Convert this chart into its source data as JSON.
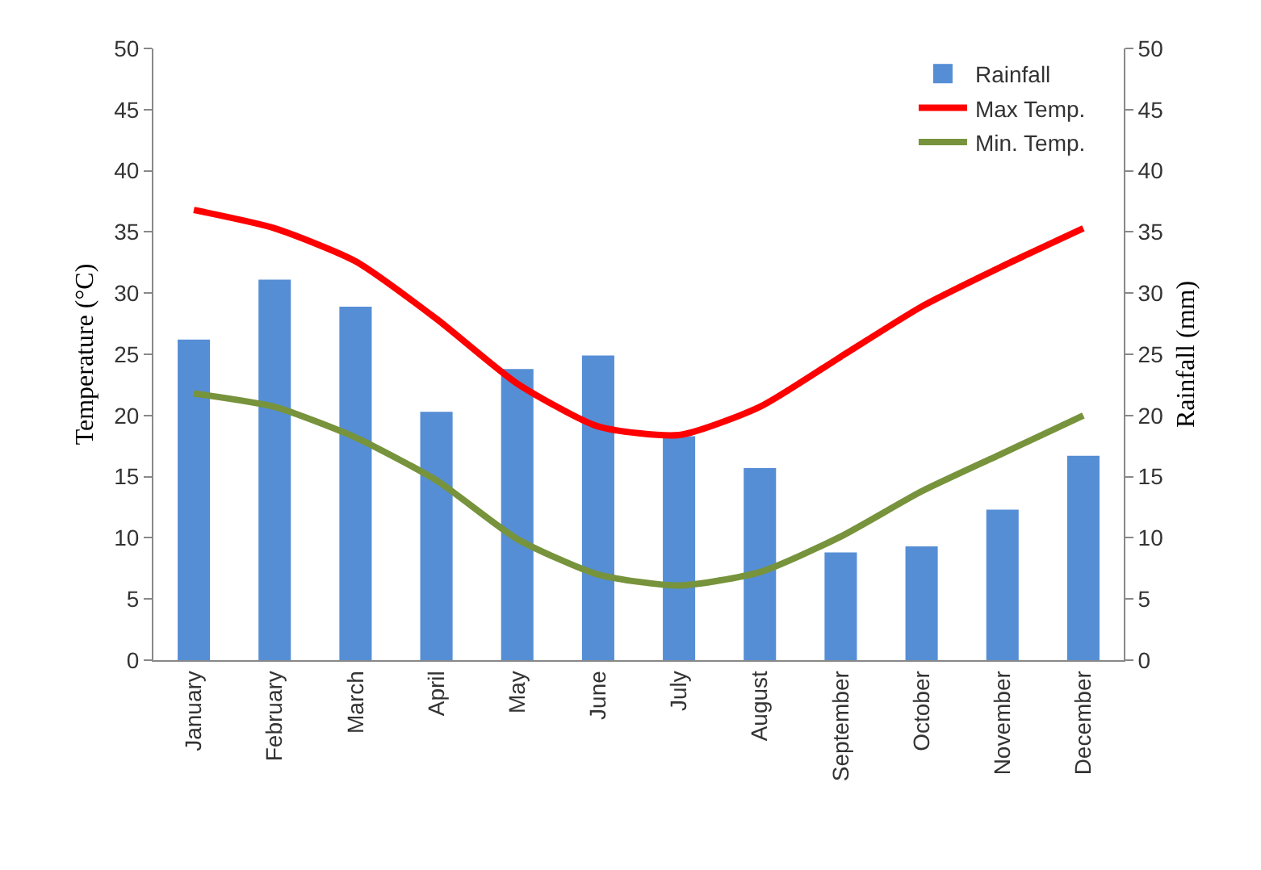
{
  "chart_data": {
    "type": "bar",
    "ylabel": "Temperature (°C)",
    "y2label": "Rainfall (mm)",
    "categories": [
      "January",
      "February",
      "March",
      "April",
      "May",
      "June",
      "July",
      "August",
      "September",
      "October",
      "November",
      "December"
    ],
    "series": [
      {
        "name": "Rainfall",
        "axis": "y2",
        "color": "#558ed5",
        "values": [
          26.2,
          31.1,
          28.9,
          20.3,
          23.8,
          24.9,
          18.3,
          15.7,
          8.8,
          9.3,
          12.3,
          16.7
        ]
      },
      {
        "name": "Max Temp.",
        "type": "line",
        "color": "#ff0000",
        "values": [
          36.8,
          35.3,
          32.6,
          27.9,
          22.6,
          19.1,
          18.4,
          20.7,
          24.8,
          28.9,
          32.2,
          35.3
        ]
      },
      {
        "name": "Min. Temp.",
        "type": "line",
        "color": "#77933c",
        "values": [
          21.8,
          20.7,
          18.2,
          14.7,
          9.9,
          7.0,
          6.1,
          7.2,
          10.1,
          13.8,
          16.9,
          20.0
        ]
      }
    ],
    "ylim": [
      0,
      50
    ],
    "yticks": [
      0,
      5,
      10,
      15,
      20,
      25,
      30,
      35,
      40,
      45,
      50
    ],
    "y2lim": [
      0,
      50
    ],
    "y2ticks": [
      0,
      5,
      10,
      15,
      20,
      25,
      30,
      35,
      40,
      45,
      50
    ],
    "grid": false,
    "legend": "top right",
    "marker": "none",
    "line_style": "solid"
  }
}
